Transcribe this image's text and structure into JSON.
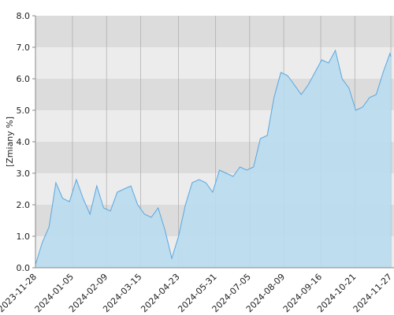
{
  "chart_data": {
    "type": "area",
    "y_label": "[Zmiany %]",
    "x": [
      "2023-11-28",
      "2023-12-05",
      "2023-12-12",
      "2023-12-19",
      "2023-12-26",
      "2024-01-02",
      "2024-01-09",
      "2024-01-16",
      "2024-01-23",
      "2024-01-30",
      "2024-02-06",
      "2024-02-13",
      "2024-02-20",
      "2024-02-27",
      "2024-03-05",
      "2024-03-12",
      "2024-03-19",
      "2024-03-26",
      "2024-04-02",
      "2024-04-09",
      "2024-04-16",
      "2024-04-23",
      "2024-04-30",
      "2024-05-07",
      "2024-05-14",
      "2024-05-21",
      "2024-05-28",
      "2024-06-04",
      "2024-06-11",
      "2024-06-18",
      "2024-06-25",
      "2024-07-02",
      "2024-07-09",
      "2024-07-16",
      "2024-07-23",
      "2024-07-30",
      "2024-08-06",
      "2024-08-13",
      "2024-08-20",
      "2024-08-27",
      "2024-09-03",
      "2024-09-10",
      "2024-09-17",
      "2024-09-24",
      "2024-10-01",
      "2024-10-08",
      "2024-10-15",
      "2024-10-22",
      "2024-10-29",
      "2024-11-05",
      "2024-11-12",
      "2024-11-19",
      "2024-11-26",
      "2024-11-27"
    ],
    "values": [
      0.1,
      0.8,
      1.3,
      2.7,
      2.2,
      2.1,
      2.8,
      2.2,
      1.7,
      2.6,
      1.9,
      1.8,
      2.4,
      2.5,
      2.6,
      2.0,
      1.7,
      1.6,
      1.9,
      1.2,
      0.3,
      1.0,
      2.0,
      2.7,
      2.8,
      2.7,
      2.4,
      3.1,
      3.0,
      2.9,
      3.2,
      3.1,
      3.2,
      4.1,
      4.2,
      5.4,
      6.2,
      6.1,
      5.8,
      5.5,
      5.8,
      6.2,
      6.6,
      6.5,
      6.9,
      6.0,
      5.7,
      5.0,
      5.1,
      5.4,
      5.5,
      6.2,
      6.8,
      6.7
    ],
    "color": "#5aa7e0",
    "fill": "#b9dcee",
    "band_colors": [
      "#ececec",
      "#dcdcdc"
    ],
    "xlim": [
      "2023-11-28",
      "2024-11-27"
    ],
    "xticks": [
      "2023-11-28",
      "2024-01-05",
      "2024-02-09",
      "2024-03-15",
      "2024-04-23",
      "2024-05-31",
      "2024-07-05",
      "2024-08-09",
      "2024-09-16",
      "2024-10-21",
      "2024-11-27"
    ],
    "ylim": [
      0,
      8
    ],
    "yticks": [
      {
        "value": 0,
        "label": "0.0"
      },
      {
        "value": 1,
        "label": "1.0"
      },
      {
        "value": 2,
        "label": "2.0"
      },
      {
        "value": 3,
        "label": "3.0"
      },
      {
        "value": 4,
        "label": "4.0"
      },
      {
        "value": 5,
        "label": "5.0"
      },
      {
        "value": 6,
        "label": "6.0"
      },
      {
        "value": 7,
        "label": "7.0"
      },
      {
        "value": 8,
        "label": "8.0"
      }
    ],
    "grid": true
  }
}
